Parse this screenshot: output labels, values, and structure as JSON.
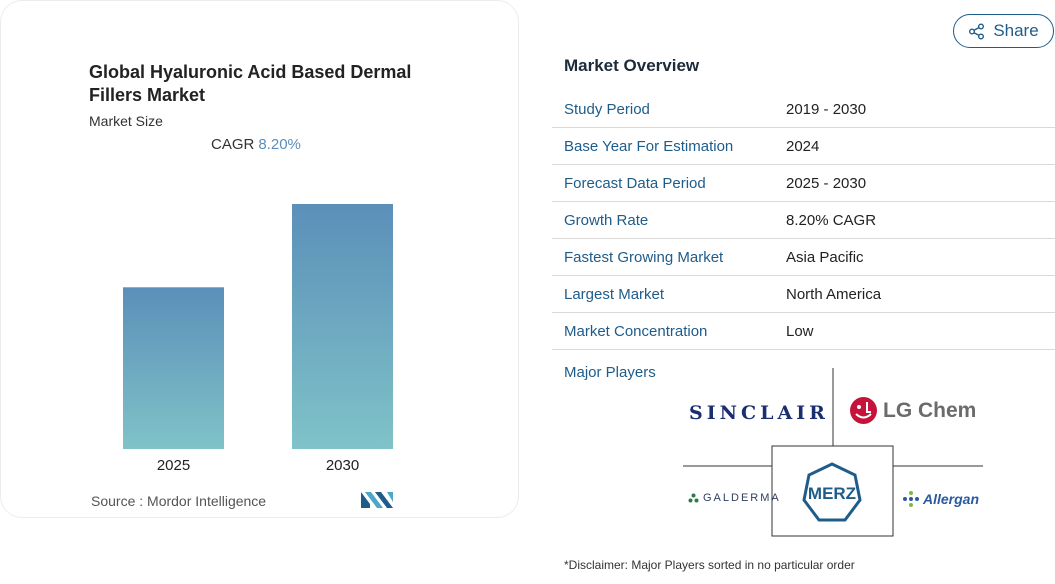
{
  "chart_data": {
    "type": "bar",
    "title": "Global Hyaluronic Acid Based Dermal Fillers Market",
    "subtitle": "Market Size",
    "cagr_label": "CAGR",
    "cagr_value": "8.20%",
    "categories": [
      "2025",
      "2030"
    ],
    "values": [
      0.66,
      1.0
    ],
    "source": "Source :  Mordor Intelligence",
    "colors": {
      "bar_top": "#5b8fb9",
      "bar_bottom": "#7fc3c8"
    }
  },
  "share": {
    "label": "Share"
  },
  "overview": {
    "title": "Market Overview",
    "rows": [
      {
        "key": "Study Period",
        "value": "2019 - 2030"
      },
      {
        "key": "Base Year For Estimation",
        "value": "2024"
      },
      {
        "key": "Forecast Data Period",
        "value": "2025 - 2030"
      },
      {
        "key": "Growth Rate",
        "value": "8.20% CAGR"
      },
      {
        "key": "Fastest Growing Market",
        "value": "Asia Pacific"
      },
      {
        "key": "Largest Market",
        "value": "North America"
      },
      {
        "key": "Market Concentration",
        "value": "Low"
      }
    ]
  },
  "players": {
    "label": "Major Players",
    "logos": {
      "sinclair": "SINCLAIR",
      "lg": "LG Chem",
      "galderma": "GALDERMA",
      "merz": "MERZ",
      "allergan": "Allergan"
    }
  },
  "disclaimer": "*Disclaimer: Major Players sorted in no particular order"
}
